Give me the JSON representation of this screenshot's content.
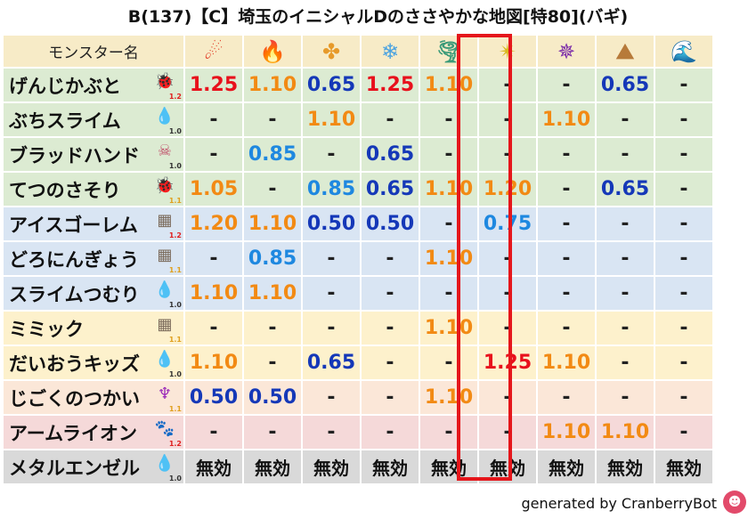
{
  "title": "B(137)【C】埼玉のイニシャルDのささやかな地図[特80](バギ)",
  "header": {
    "name_label": "モンスター名",
    "elements": [
      {
        "icon": "fire-ball-icon",
        "glyph": "☄",
        "color": "#e2412a"
      },
      {
        "icon": "flame-icon",
        "glyph": "🔥",
        "color": "#e8501c"
      },
      {
        "icon": "explosion-icon",
        "glyph": "✤",
        "color": "#e79a2a"
      },
      {
        "icon": "ice-icon",
        "glyph": "❄",
        "color": "#4ca3e0"
      },
      {
        "icon": "wind-icon",
        "glyph": "🌪",
        "color": "#3a9a78"
      },
      {
        "icon": "light-icon",
        "glyph": "✴",
        "color": "#d9b820"
      },
      {
        "icon": "dark-icon",
        "glyph": "✵",
        "color": "#7a2aa8"
      },
      {
        "icon": "earth-icon",
        "glyph": "⛰",
        "color": "#b77a3a"
      },
      {
        "icon": "water-icon",
        "glyph": "🌊",
        "color": "#2a6ad0"
      }
    ]
  },
  "rows": [
    {
      "name": "げんじかぶと",
      "icon": "insect-icon",
      "glyph": "🐞",
      "icon_color": "#3a4a3a",
      "level": "1.2",
      "level_color": "#e02020",
      "bg": "green",
      "values": [
        [
          "1.25",
          "red"
        ],
        [
          "1.10",
          "orange"
        ],
        [
          "0.65",
          "blue"
        ],
        [
          "1.25",
          "red"
        ],
        [
          "1.10",
          "orange"
        ],
        [
          "-",
          "dash"
        ],
        [
          "-",
          "dash"
        ],
        [
          "0.65",
          "blue"
        ],
        [
          "-",
          "dash"
        ]
      ]
    },
    {
      "name": "ぶちスライム",
      "icon": "slime-icon",
      "glyph": "💧",
      "icon_color": "#2a8ae0",
      "level": "1.0",
      "level_color": "#333333",
      "bg": "green",
      "values": [
        [
          "-",
          "dash"
        ],
        [
          "-",
          "dash"
        ],
        [
          "1.10",
          "orange"
        ],
        [
          "-",
          "dash"
        ],
        [
          "-",
          "dash"
        ],
        [
          "-",
          "dash"
        ],
        [
          "1.10",
          "orange"
        ],
        [
          "-",
          "dash"
        ],
        [
          "-",
          "dash"
        ]
      ]
    },
    {
      "name": "ブラッドハンド",
      "icon": "skull-icon",
      "glyph": "☠",
      "icon_color": "#c0506a",
      "level": "1.0",
      "level_color": "#333333",
      "bg": "green",
      "values": [
        [
          "-",
          "dash"
        ],
        [
          "0.85",
          "lblue"
        ],
        [
          "-",
          "dash"
        ],
        [
          "0.65",
          "blue"
        ],
        [
          "-",
          "dash"
        ],
        [
          "-",
          "dash"
        ],
        [
          "-",
          "dash"
        ],
        [
          "-",
          "dash"
        ],
        [
          "-",
          "dash"
        ]
      ]
    },
    {
      "name": "てつのさそり",
      "icon": "insect-icon",
      "glyph": "🐞",
      "icon_color": "#3a4a3a",
      "level": "1.1",
      "level_color": "#e0a020",
      "bg": "green",
      "values": [
        [
          "1.05",
          "orange"
        ],
        [
          "-",
          "dash"
        ],
        [
          "0.85",
          "lblue"
        ],
        [
          "0.65",
          "blue"
        ],
        [
          "1.10",
          "orange"
        ],
        [
          "1.20",
          "orange"
        ],
        [
          "-",
          "dash"
        ],
        [
          "0.65",
          "blue"
        ],
        [
          "-",
          "dash"
        ]
      ]
    },
    {
      "name": "アイスゴーレム",
      "icon": "brick-icon",
      "glyph": "▦",
      "icon_color": "#7a6a5a",
      "level": "1.2",
      "level_color": "#e02020",
      "bg": "blue",
      "values": [
        [
          "1.20",
          "orange"
        ],
        [
          "1.10",
          "orange"
        ],
        [
          "0.50",
          "blue"
        ],
        [
          "0.50",
          "blue"
        ],
        [
          "-",
          "dash"
        ],
        [
          "0.75",
          "lblue"
        ],
        [
          "-",
          "dash"
        ],
        [
          "-",
          "dash"
        ],
        [
          "-",
          "dash"
        ]
      ]
    },
    {
      "name": "どろにんぎょう",
      "icon": "brick-icon",
      "glyph": "▦",
      "icon_color": "#7a6a5a",
      "level": "1.1",
      "level_color": "#e0a020",
      "bg": "blue",
      "values": [
        [
          "-",
          "dash"
        ],
        [
          "0.85",
          "lblue"
        ],
        [
          "-",
          "dash"
        ],
        [
          "-",
          "dash"
        ],
        [
          "1.10",
          "orange"
        ],
        [
          "-",
          "dash"
        ],
        [
          "-",
          "dash"
        ],
        [
          "-",
          "dash"
        ],
        [
          "-",
          "dash"
        ]
      ]
    },
    {
      "name": "スライムつむり",
      "icon": "slime-icon",
      "glyph": "💧",
      "icon_color": "#2a8ae0",
      "level": "1.0",
      "level_color": "#333333",
      "bg": "blue",
      "values": [
        [
          "1.10",
          "orange"
        ],
        [
          "1.10",
          "orange"
        ],
        [
          "-",
          "dash"
        ],
        [
          "-",
          "dash"
        ],
        [
          "-",
          "dash"
        ],
        [
          "-",
          "dash"
        ],
        [
          "-",
          "dash"
        ],
        [
          "-",
          "dash"
        ],
        [
          "-",
          "dash"
        ]
      ]
    },
    {
      "name": "ミミック",
      "icon": "brick-icon",
      "glyph": "▦",
      "icon_color": "#7a6a5a",
      "level": "1.1",
      "level_color": "#e0a020",
      "bg": "yellow",
      "values": [
        [
          "-",
          "dash"
        ],
        [
          "-",
          "dash"
        ],
        [
          "-",
          "dash"
        ],
        [
          "-",
          "dash"
        ],
        [
          "1.10",
          "orange"
        ],
        [
          "-",
          "dash"
        ],
        [
          "-",
          "dash"
        ],
        [
          "-",
          "dash"
        ],
        [
          "-",
          "dash"
        ]
      ]
    },
    {
      "name": "だいおうキッズ",
      "icon": "water-drop-icon",
      "glyph": "💧",
      "icon_color": "#2a8ae0",
      "level": "1.0",
      "level_color": "#333333",
      "bg": "yellow",
      "values": [
        [
          "1.10",
          "orange"
        ],
        [
          "-",
          "dash"
        ],
        [
          "0.65",
          "blue"
        ],
        [
          "-",
          "dash"
        ],
        [
          "-",
          "dash"
        ],
        [
          "1.25",
          "red"
        ],
        [
          "1.10",
          "orange"
        ],
        [
          "-",
          "dash"
        ],
        [
          "-",
          "dash"
        ]
      ]
    },
    {
      "name": "じごくのつかい",
      "icon": "demon-icon",
      "glyph": "♆",
      "icon_color": "#9a2ab8",
      "level": "1.1",
      "level_color": "#e0a020",
      "bg": "peach",
      "values": [
        [
          "0.50",
          "blue"
        ],
        [
          "0.50",
          "blue"
        ],
        [
          "-",
          "dash"
        ],
        [
          "-",
          "dash"
        ],
        [
          "1.10",
          "orange"
        ],
        [
          "-",
          "dash"
        ],
        [
          "-",
          "dash"
        ],
        [
          "-",
          "dash"
        ],
        [
          "-",
          "dash"
        ]
      ]
    },
    {
      "name": "アームライオン",
      "icon": "paw-icon",
      "glyph": "🐾",
      "icon_color": "#e07a20",
      "level": "1.2",
      "level_color": "#e02020",
      "bg": "pink",
      "values": [
        [
          "-",
          "dash"
        ],
        [
          "-",
          "dash"
        ],
        [
          "-",
          "dash"
        ],
        [
          "-",
          "dash"
        ],
        [
          "-",
          "dash"
        ],
        [
          "-",
          "dash"
        ],
        [
          "1.10",
          "orange"
        ],
        [
          "1.10",
          "orange"
        ],
        [
          "-",
          "dash"
        ]
      ]
    },
    {
      "name": "メタルエンゼル",
      "icon": "slime-icon",
      "glyph": "💧",
      "icon_color": "#2a8ae0",
      "level": "1.0",
      "level_color": "#333333",
      "bg": "gray",
      "values": [
        [
          "無効",
          "muko"
        ],
        [
          "無効",
          "muko"
        ],
        [
          "無効",
          "muko"
        ],
        [
          "無効",
          "muko"
        ],
        [
          "無効",
          "muko"
        ],
        [
          "無効",
          "muko"
        ],
        [
          "無効",
          "muko"
        ],
        [
          "無効",
          "muko"
        ],
        [
          "無効",
          "muko"
        ]
      ]
    }
  ],
  "footer": {
    "text": "generated by CranberryBot",
    "bot_icon": "cranberry-bot-icon",
    "bot_glyph": "☻"
  }
}
